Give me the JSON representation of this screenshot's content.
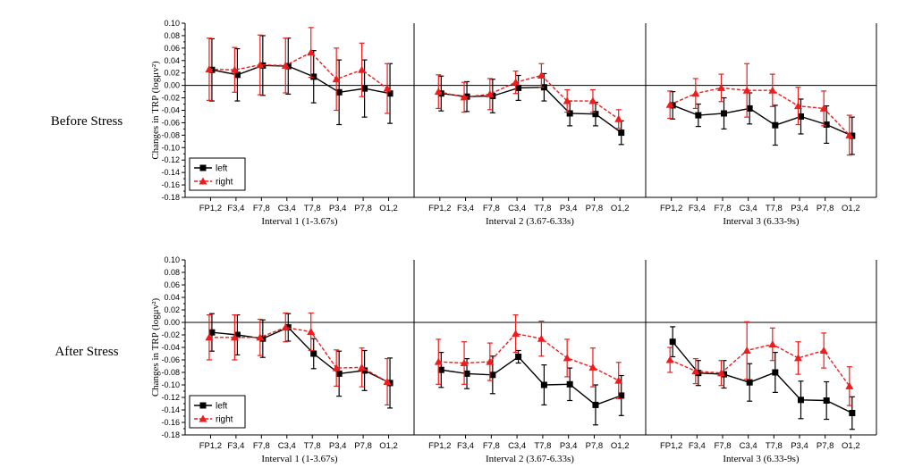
{
  "row_labels": [
    "Before Stress",
    "After Stress"
  ],
  "chart_data": [
    {
      "type": "line",
      "row": "Before Stress",
      "ylabel": "Changes in TRP (logμv²)",
      "ylim": [
        -0.18,
        0.1
      ],
      "yticks": [
        "0.10",
        "0.08",
        "0.06",
        "0.04",
        "0.02",
        "0.00",
        "-0.02",
        "-0.04",
        "-0.06",
        "-0.08",
        "-0.10",
        "-0.12",
        "-0.14",
        "-0.16",
        "-0.18"
      ],
      "categories": [
        "FP1,2",
        "F3,4",
        "F7,8",
        "C3,4",
        "T7,8",
        "P3,4",
        "P7,8",
        "O1,2"
      ],
      "legend": {
        "placement": "lower-left",
        "entries": [
          "left",
          "right"
        ]
      },
      "colors": {
        "left": "#000000",
        "right": "#ee1c1c"
      },
      "panels": [
        {
          "title": "Interval 1 (1-3.67s)",
          "series": [
            {
              "name": "left",
              "values": [
                0.025,
                0.017,
                0.032,
                0.031,
                0.014,
                -0.011,
                -0.005,
                -0.013
              ],
              "errors": [
                0.05,
                0.042,
                0.048,
                0.045,
                0.042,
                0.052,
                0.046,
                0.048
              ]
            },
            {
              "name": "right",
              "values": [
                0.026,
                0.025,
                0.033,
                0.032,
                0.053,
                0.01,
                0.025,
                -0.005
              ],
              "errors": [
                0.05,
                0.036,
                0.048,
                0.044,
                0.04,
                0.05,
                0.043,
                0.04
              ]
            }
          ]
        },
        {
          "title": "Interval 2 (3.67-6.33s)",
          "series": [
            {
              "name": "left",
              "values": [
                -0.013,
                -0.018,
                -0.017,
                -0.004,
                -0.003,
                -0.045,
                -0.046,
                -0.076
              ],
              "errors": [
                0.028,
                0.024,
                0.027,
                0.02,
                0.022,
                0.02,
                0.019,
                0.019
              ]
            },
            {
              "name": "right",
              "values": [
                -0.01,
                -0.019,
                -0.014,
                0.005,
                0.016,
                -0.025,
                -0.025,
                -0.054
              ],
              "errors": [
                0.027,
                0.024,
                0.025,
                0.018,
                0.019,
                0.018,
                0.018,
                0.015
              ]
            }
          ]
        },
        {
          "title": "Interval 3 (6.33-9s)",
          "series": [
            {
              "name": "left",
              "values": [
                -0.032,
                -0.048,
                -0.045,
                -0.037,
                -0.064,
                -0.05,
                -0.063,
                -0.081
              ],
              "errors": [
                0.022,
                0.018,
                0.025,
                0.025,
                0.032,
                0.028,
                0.03,
                0.03
              ]
            },
            {
              "name": "right",
              "values": [
                -0.031,
                -0.013,
                -0.004,
                -0.008,
                -0.008,
                -0.033,
                -0.037,
                -0.08
              ],
              "errors": [
                0.022,
                0.024,
                0.022,
                0.043,
                0.026,
                0.03,
                0.028,
                0.032
              ]
            }
          ]
        }
      ]
    },
    {
      "type": "line",
      "row": "After Stress",
      "ylabel": "Changes in TRP (logμv²)",
      "ylim": [
        -0.18,
        0.1
      ],
      "yticks": [
        "0.10",
        "0.08",
        "0.06",
        "0.04",
        "0.02",
        "0.00",
        "-0.02",
        "-0.04",
        "-0.06",
        "-0.08",
        "-0.10",
        "-0.12",
        "-0.14",
        "-0.16",
        "-0.18"
      ],
      "categories": [
        "FP1,2",
        "F3,4",
        "F7,8",
        "C3,4",
        "T7,8",
        "P3,4",
        "P7,8",
        "O1,2"
      ],
      "legend": {
        "placement": "lower-left",
        "entries": [
          "left",
          "right"
        ]
      },
      "colors": {
        "left": "#000000",
        "right": "#ee1c1c"
      },
      "panels": [
        {
          "title": "Interval 1 (1-3.67s)",
          "series": [
            {
              "name": "left",
              "values": [
                -0.016,
                -0.02,
                -0.026,
                -0.008,
                -0.05,
                -0.082,
                -0.077,
                -0.097
              ],
              "errors": [
                0.03,
                0.032,
                0.03,
                0.022,
                0.024,
                0.036,
                0.032,
                0.04
              ]
            },
            {
              "name": "right",
              "values": [
                -0.024,
                -0.024,
                -0.024,
                -0.008,
                -0.015,
                -0.073,
                -0.072,
                -0.095
              ],
              "errors": [
                0.036,
                0.036,
                0.029,
                0.023,
                0.03,
                0.029,
                0.031,
                0.037
              ]
            }
          ]
        },
        {
          "title": "Interval 2 (3.67-6.33s)",
          "series": [
            {
              "name": "left",
              "values": [
                -0.076,
                -0.082,
                -0.084,
                -0.055,
                -0.1,
                -0.099,
                -0.132,
                -0.117
              ],
              "errors": [
                0.028,
                0.024,
                0.03,
                0.01,
                0.032,
                0.026,
                0.032,
                0.032
              ]
            },
            {
              "name": "right",
              "values": [
                -0.063,
                -0.065,
                -0.063,
                -0.018,
                -0.026,
                -0.057,
                -0.072,
                -0.093
              ],
              "errors": [
                0.036,
                0.034,
                0.03,
                0.03,
                0.028,
                0.03,
                0.031,
                0.029
              ]
            }
          ]
        },
        {
          "title": "Interval 3 (6.33-9s)",
          "series": [
            {
              "name": "left",
              "values": [
                -0.031,
                -0.081,
                -0.083,
                -0.096,
                -0.08,
                -0.124,
                -0.125,
                -0.145
              ],
              "errors": [
                0.024,
                0.02,
                0.022,
                0.03,
                0.032,
                0.03,
                0.03,
                0.026
              ]
            },
            {
              "name": "right",
              "values": [
                -0.06,
                -0.078,
                -0.081,
                -0.045,
                -0.035,
                -0.057,
                -0.045,
                -0.102
              ],
              "errors": [
                0.02,
                0.02,
                0.02,
                0.046,
                0.026,
                0.026,
                0.028,
                0.031
              ]
            }
          ]
        }
      ]
    }
  ]
}
